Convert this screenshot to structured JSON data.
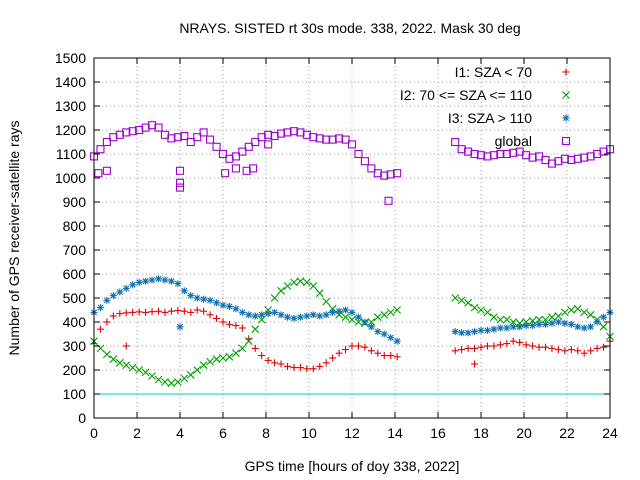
{
  "chart_data": {
    "type": "scatter",
    "title": "NRAYS. SISTED rt 30s mode. 338, 2022. Mask 30 deg",
    "xlabel": "GPS time [hours of doy 338, 2022]",
    "ylabel": "Number of GPS receiver-satellite rays",
    "xlim": [
      0,
      24
    ],
    "ylim": [
      0,
      1500
    ],
    "xticks": [
      0,
      2,
      4,
      6,
      8,
      10,
      12,
      14,
      16,
      18,
      20,
      22,
      24
    ],
    "yticks": [
      0,
      100,
      200,
      300,
      400,
      500,
      600,
      700,
      800,
      900,
      1000,
      1100,
      1200,
      1300,
      1400,
      1500
    ],
    "grid": true,
    "legend_position": "top-right",
    "reference_line": {
      "y": 100,
      "color": "#00c8c8"
    },
    "series": [
      {
        "name": "I1: SZA < 70",
        "marker": "plus",
        "color": "#e00000",
        "x": [
          0.0,
          0.3,
          0.6,
          0.9,
          1.2,
          1.5,
          1.8,
          2.1,
          2.4,
          2.7,
          3.0,
          3.3,
          3.6,
          3.9,
          4.2,
          4.5,
          4.8,
          5.1,
          5.4,
          5.7,
          6.0,
          6.3,
          6.6,
          6.9,
          7.2,
          7.5,
          7.8,
          8.1,
          8.4,
          8.7,
          9.0,
          9.3,
          9.6,
          9.9,
          10.2,
          10.5,
          10.8,
          11.1,
          11.4,
          11.7,
          12.0,
          12.3,
          12.6,
          12.9,
          13.2,
          13.5,
          13.8,
          14.1,
          16.8,
          17.1,
          17.4,
          17.7,
          18.0,
          18.3,
          18.6,
          18.9,
          19.2,
          19.5,
          19.8,
          20.1,
          20.4,
          20.7,
          21.0,
          21.3,
          21.6,
          21.9,
          22.2,
          22.5,
          22.8,
          23.1,
          23.4,
          23.7,
          24.0,
          1.5,
          17.7
        ],
        "y": [
          310,
          370,
          400,
          425,
          435,
          438,
          440,
          442,
          440,
          443,
          445,
          440,
          445,
          448,
          445,
          440,
          450,
          445,
          430,
          415,
          400,
          390,
          385,
          375,
          330,
          290,
          260,
          240,
          230,
          225,
          215,
          210,
          210,
          205,
          205,
          215,
          230,
          250,
          270,
          285,
          300,
          300,
          295,
          280,
          270,
          260,
          260,
          255,
          280,
          285,
          290,
          290,
          295,
          300,
          300,
          305,
          310,
          320,
          315,
          305,
          300,
          295,
          295,
          290,
          285,
          280,
          285,
          280,
          270,
          280,
          290,
          295,
          320,
          300,
          225
        ]
      },
      {
        "name": "I2: 70 <= SZA <= 110",
        "marker": "cross",
        "color": "#00a000",
        "x": [
          0.0,
          0.3,
          0.6,
          0.9,
          1.2,
          1.5,
          1.8,
          2.1,
          2.4,
          2.7,
          3.0,
          3.3,
          3.6,
          3.9,
          4.2,
          4.5,
          4.8,
          5.1,
          5.4,
          5.7,
          6.0,
          6.3,
          6.6,
          6.9,
          7.2,
          7.5,
          7.8,
          8.1,
          8.4,
          8.7,
          9.0,
          9.3,
          9.6,
          9.9,
          10.2,
          10.5,
          10.8,
          11.1,
          11.4,
          11.7,
          12.0,
          12.3,
          12.6,
          12.9,
          13.2,
          13.5,
          13.8,
          14.1,
          16.8,
          17.1,
          17.4,
          17.7,
          18.0,
          18.3,
          18.6,
          18.9,
          19.2,
          19.5,
          19.8,
          20.1,
          20.4,
          20.7,
          21.0,
          21.3,
          21.6,
          21.9,
          22.2,
          22.5,
          22.8,
          23.1,
          23.4,
          23.7,
          24.0
        ],
        "y": [
          320,
          290,
          265,
          245,
          230,
          220,
          210,
          200,
          190,
          175,
          160,
          150,
          145,
          150,
          165,
          180,
          200,
          220,
          235,
          245,
          250,
          255,
          270,
          290,
          320,
          370,
          410,
          450,
          500,
          530,
          550,
          565,
          570,
          565,
          550,
          520,
          485,
          455,
          430,
          420,
          410,
          400,
          395,
          400,
          420,
          430,
          440,
          450,
          500,
          490,
          480,
          460,
          450,
          440,
          420,
          410,
          410,
          400,
          395,
          400,
          405,
          410,
          410,
          420,
          425,
          440,
          450,
          455,
          440,
          430,
          410,
          380,
          340
        ]
      },
      {
        "name": "I3: SZA > 110",
        "marker": "star",
        "color": "#1070b0",
        "x": [
          0.0,
          0.3,
          0.6,
          0.9,
          1.2,
          1.5,
          1.8,
          2.1,
          2.4,
          2.7,
          3.0,
          3.3,
          3.6,
          3.9,
          4.2,
          4.5,
          4.8,
          5.1,
          5.4,
          5.7,
          6.0,
          6.3,
          6.6,
          6.9,
          7.2,
          7.5,
          7.8,
          8.1,
          8.4,
          8.7,
          9.0,
          9.3,
          9.6,
          9.9,
          10.2,
          10.5,
          10.8,
          11.1,
          11.4,
          11.7,
          12.0,
          12.3,
          12.6,
          12.9,
          13.2,
          13.5,
          13.8,
          14.1,
          16.8,
          17.1,
          17.4,
          17.7,
          18.0,
          18.3,
          18.6,
          18.9,
          19.2,
          19.5,
          19.8,
          20.1,
          20.4,
          20.7,
          21.0,
          21.3,
          21.6,
          21.9,
          22.2,
          22.5,
          22.8,
          23.1,
          23.4,
          23.7,
          24.0,
          4.0
        ],
        "y": [
          440,
          460,
          490,
          510,
          525,
          540,
          555,
          565,
          570,
          575,
          580,
          575,
          570,
          560,
          530,
          510,
          500,
          495,
          490,
          480,
          470,
          465,
          455,
          440,
          430,
          425,
          430,
          435,
          440,
          430,
          420,
          415,
          420,
          425,
          430,
          425,
          430,
          440,
          445,
          450,
          440,
          420,
          400,
          380,
          360,
          350,
          335,
          320,
          360,
          355,
          355,
          360,
          365,
          365,
          370,
          375,
          375,
          380,
          380,
          385,
          385,
          390,
          390,
          395,
          400,
          395,
          390,
          380,
          375,
          380,
          400,
          420,
          440,
          380
        ]
      },
      {
        "name": "global",
        "marker": "square",
        "color": "#a000d0",
        "x": [
          0.0,
          0.3,
          0.6,
          0.9,
          1.2,
          1.5,
          1.8,
          2.1,
          2.4,
          2.7,
          3.0,
          3.3,
          3.6,
          3.9,
          4.2,
          4.5,
          4.8,
          5.1,
          5.4,
          5.7,
          6.0,
          6.3,
          6.6,
          6.9,
          7.2,
          7.5,
          7.8,
          8.1,
          8.4,
          8.7,
          9.0,
          9.3,
          9.6,
          9.9,
          10.2,
          10.5,
          10.8,
          11.1,
          11.4,
          11.7,
          12.0,
          12.3,
          12.6,
          12.9,
          13.2,
          13.5,
          13.8,
          14.1,
          16.8,
          17.1,
          17.4,
          17.7,
          18.0,
          18.3,
          18.6,
          18.9,
          19.2,
          19.5,
          19.8,
          20.1,
          20.4,
          20.7,
          21.0,
          21.3,
          21.6,
          21.9,
          22.2,
          22.5,
          22.8,
          23.1,
          23.4,
          23.7,
          24.0,
          0.2,
          0.6,
          4.0,
          4.0,
          4.0,
          6.1,
          6.6,
          7.1,
          7.4,
          8.1,
          13.7
        ],
        "y": [
          1090,
          1120,
          1150,
          1170,
          1180,
          1190,
          1195,
          1200,
          1210,
          1220,
          1210,
          1180,
          1165,
          1170,
          1175,
          1150,
          1170,
          1190,
          1160,
          1130,
          1100,
          1080,
          1090,
          1110,
          1130,
          1150,
          1170,
          1180,
          1175,
          1185,
          1190,
          1195,
          1190,
          1180,
          1170,
          1165,
          1160,
          1160,
          1165,
          1160,
          1140,
          1100,
          1070,
          1040,
          1020,
          1010,
          1015,
          1020,
          1150,
          1120,
          1110,
          1100,
          1095,
          1090,
          1095,
          1100,
          1100,
          1105,
          1110,
          1095,
          1085,
          1090,
          1075,
          1060,
          1070,
          1080,
          1075,
          1080,
          1085,
          1090,
          1100,
          1110,
          1120,
          1020,
          1030,
          1030,
          980,
          960,
          1020,
          1040,
          1030,
          1040,
          1140,
          905
        ]
      }
    ]
  }
}
